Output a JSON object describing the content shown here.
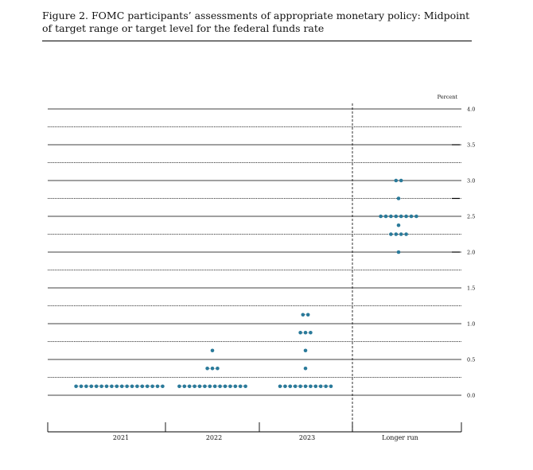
{
  "chart_data": {
    "type": "scatter",
    "title": "Figure 2.  FOMC participants’ assessments of appropriate monetary policy:  Midpoint of target range or target level for the federal funds rate",
    "unit_label": "Percent",
    "categories": [
      "2021",
      "2022",
      "2023",
      "Longer run"
    ],
    "ylim": [
      -0.625,
      4.0
    ],
    "y_ticks": [
      0.0,
      0.5,
      1.0,
      1.5,
      2.0,
      2.5,
      3.0,
      3.5,
      4.0
    ],
    "y_tick_labels": [
      "0.0",
      "0.5",
      "1.0",
      "1.5",
      "2.0",
      "2.5",
      "3.0",
      "3.5",
      "4.0"
    ],
    "grid_step": 0.25,
    "grid": true,
    "dot_color": "#2a7a9a",
    "series": [
      {
        "category": "2021",
        "dots": [
          {
            "y": 0.125,
            "count": 18
          }
        ]
      },
      {
        "category": "2022",
        "dots": [
          {
            "y": 0.125,
            "count": 14
          },
          {
            "y": 0.375,
            "count": 3
          },
          {
            "y": 0.625,
            "count": 1
          }
        ]
      },
      {
        "category": "2023",
        "dots": [
          {
            "y": 0.125,
            "count": 11
          },
          {
            "y": 0.375,
            "count": 1
          },
          {
            "y": 0.625,
            "count": 1
          },
          {
            "y": 0.875,
            "count": 3
          },
          {
            "y": 1.125,
            "count": 2
          }
        ]
      },
      {
        "category": "Longer run",
        "dots": [
          {
            "y": 2.0,
            "count": 1
          },
          {
            "y": 2.25,
            "count": 4
          },
          {
            "y": 2.375,
            "count": 1
          },
          {
            "y": 2.5,
            "count": 8
          },
          {
            "y": 2.75,
            "count": 1
          },
          {
            "y": 3.0,
            "count": 2
          }
        ]
      }
    ]
  }
}
